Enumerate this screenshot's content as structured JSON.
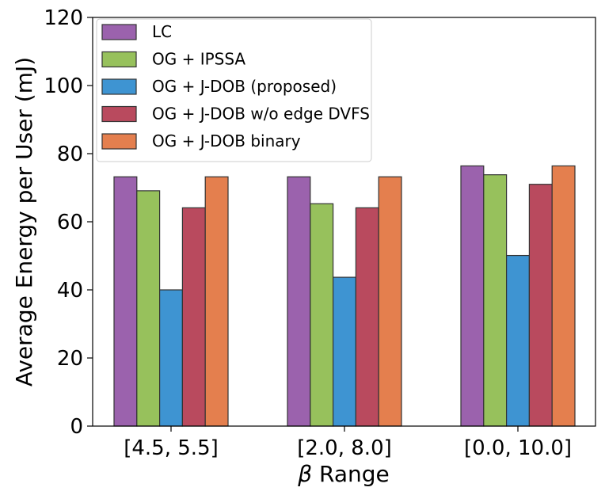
{
  "chart_data": {
    "type": "bar",
    "xlabel_symbol": "β",
    "xlabel_text": " Range",
    "ylabel": "Average Energy per User (mJ)",
    "categories": [
      "[4.5, 5.5]",
      "[2.0, 8.0]",
      "[0.0, 10.0]"
    ],
    "ylim": [
      0,
      120
    ],
    "yticks": [
      0,
      20,
      40,
      60,
      80,
      100,
      120
    ],
    "legend_position": "top-left",
    "grid": false,
    "series": [
      {
        "name": "LC",
        "color": "#9b62ad",
        "values": [
          73.2,
          73.2,
          76.4
        ]
      },
      {
        "name": "OG + IPSSA",
        "color": "#97c15c",
        "values": [
          69.1,
          65.3,
          73.8
        ]
      },
      {
        "name": "OG + J-DOB (proposed)",
        "color": "#3e94d2",
        "values": [
          40.0,
          43.7,
          50.1
        ]
      },
      {
        "name": "OG + J-DOB w/o edge DVFS",
        "color": "#b94a5e",
        "values": [
          64.1,
          64.1,
          71.0
        ]
      },
      {
        "name": "OG + J-DOB binary",
        "color": "#e47f4e",
        "values": [
          73.2,
          73.2,
          76.4
        ]
      }
    ]
  }
}
